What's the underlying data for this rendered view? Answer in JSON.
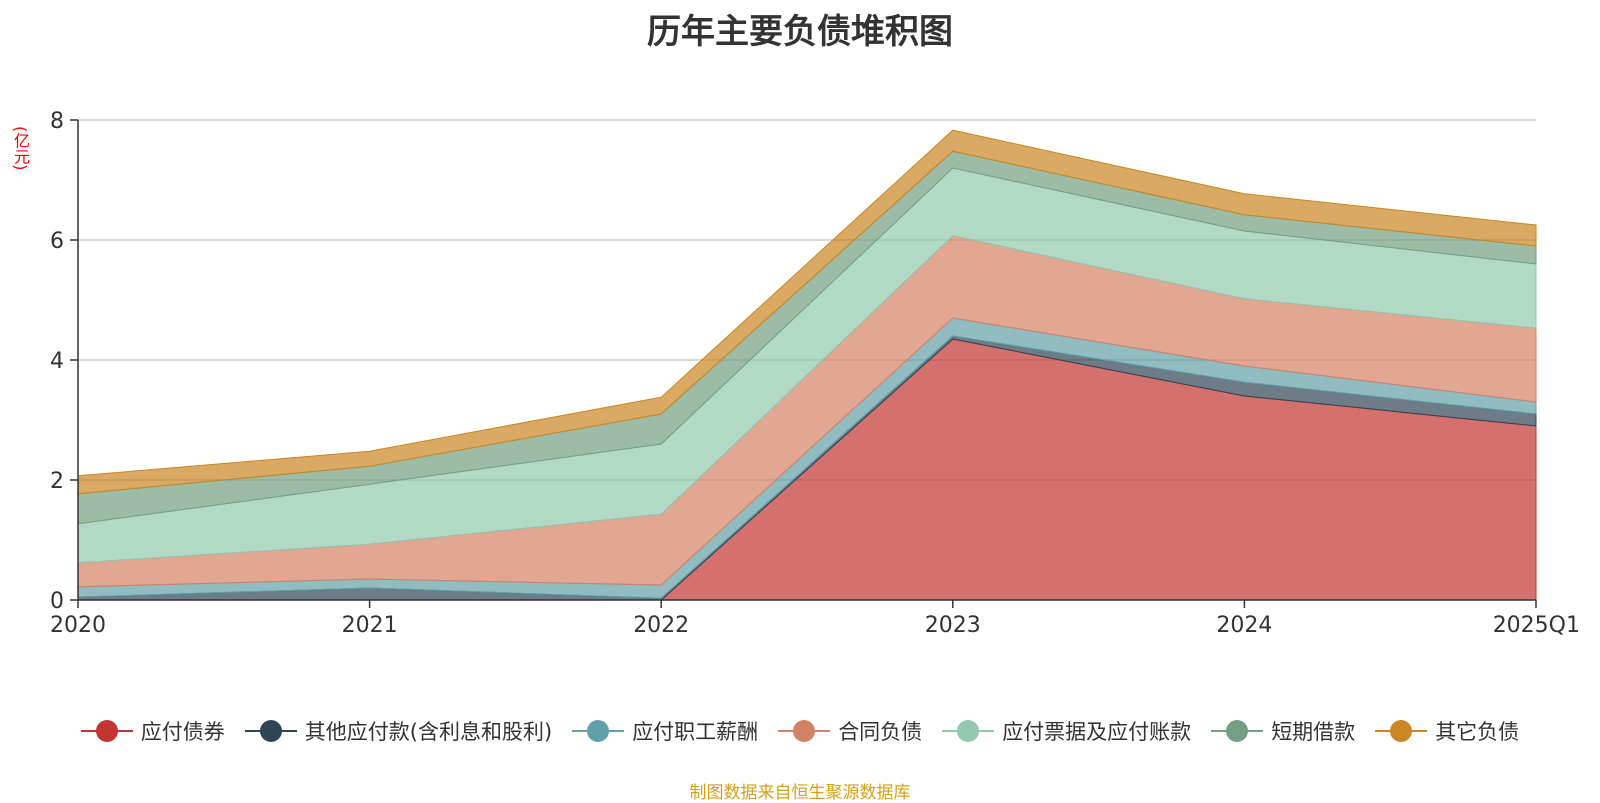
{
  "title": "历年主要负债堆积图",
  "source": "制图数据来自恒生聚源数据库",
  "chart_data": {
    "type": "area",
    "stacked": true,
    "title": "历年主要负债堆积图",
    "yunit": "(亿元)",
    "categories": [
      "2020",
      "2021",
      "2022",
      "2023",
      "2024",
      "2025Q1"
    ],
    "ylim": [
      0,
      8
    ],
    "yticks": [
      0,
      2,
      4,
      6,
      8
    ],
    "grid": true,
    "legend_position": "bottom",
    "series": [
      {
        "name": "应付债券",
        "color": "#c23531",
        "values": [
          0,
          0,
          0,
          4.35,
          3.4,
          2.9
        ]
      },
      {
        "name": "其他应付款(含利息和股利)",
        "color": "#2f4554",
        "values": [
          0.05,
          0.2,
          0.03,
          0.05,
          0.23,
          0.2
        ]
      },
      {
        "name": "应付职工薪酬",
        "color": "#61a0a8",
        "values": [
          0.17,
          0.15,
          0.22,
          0.3,
          0.27,
          0.2
        ]
      },
      {
        "name": "合同负债",
        "color": "#d48265",
        "values": [
          0.4,
          0.58,
          1.18,
          1.37,
          1.12,
          1.23
        ]
      },
      {
        "name": "应付票据及应付账款",
        "color": "#91c7ae",
        "values": [
          0.65,
          1.0,
          1.17,
          1.13,
          1.13,
          1.07
        ]
      },
      {
        "name": "短期借款",
        "color": "#749f83",
        "values": [
          0.5,
          0.3,
          0.5,
          0.28,
          0.27,
          0.3
        ]
      },
      {
        "name": "其它负债",
        "color": "#ca8622",
        "values": [
          0.3,
          0.25,
          0.28,
          0.35,
          0.35,
          0.35
        ]
      }
    ]
  }
}
